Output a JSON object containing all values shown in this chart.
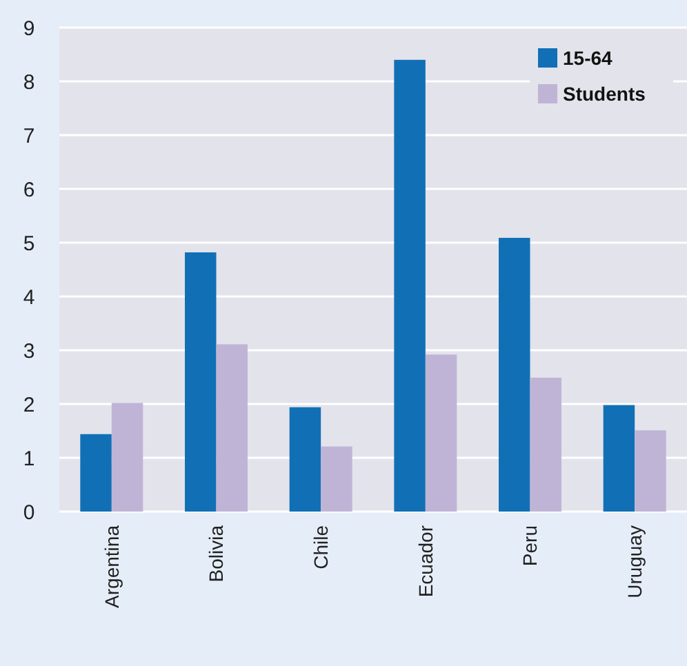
{
  "chart_data": {
    "type": "bar",
    "categories": [
      "Argentina",
      "Bolivia",
      "Chile",
      "Ecuador",
      "Peru",
      "Uruguay"
    ],
    "series": [
      {
        "name": "15-64",
        "color": "#1170b5",
        "values": [
          1.44,
          4.82,
          1.94,
          8.4,
          5.09,
          1.98
        ]
      },
      {
        "name": "Students",
        "color": "#c0b4d6",
        "values": [
          2.02,
          3.11,
          1.21,
          2.92,
          2.49,
          1.51
        ]
      }
    ],
    "ylim": [
      0,
      9
    ],
    "yticks": [
      0,
      1,
      2,
      3,
      4,
      5,
      6,
      7,
      8,
      9
    ],
    "grid": "y",
    "legend": "top right"
  }
}
